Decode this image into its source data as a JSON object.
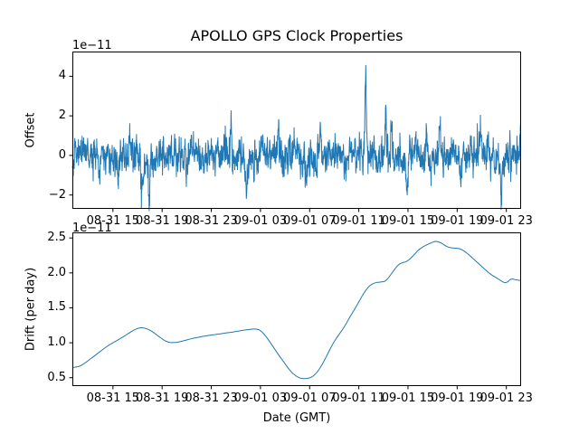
{
  "figure": {
    "title": "APOLLO GPS Clock Properties",
    "background_color": "#ffffff",
    "axes_edge_color": "#000000",
    "text_color": "#000000"
  },
  "chart_data": [
    {
      "type": "line",
      "id": "offset",
      "ylabel": "Offset",
      "scale_label": "1e−11",
      "line_color": "#1f77b4",
      "grid": false,
      "legend": "none",
      "xlim": [
        11.7,
        48.2
      ],
      "ylim": [
        -2.7,
        5.25
      ],
      "x_ticks": {
        "hours": [
          15,
          19,
          23,
          27,
          31,
          35,
          39,
          43,
          47
        ],
        "labels": [
          "08-31 15",
          "08-31 19",
          "08-31 23",
          "09-01 03",
          "09-01 07",
          "09-01 11",
          "09-01 15",
          "09-01 19",
          "09-01 23"
        ]
      },
      "y_ticks": {
        "values": [
          -2,
          0,
          2,
          4
        ],
        "labels": [
          "−2",
          "0",
          "2",
          "4"
        ]
      },
      "series_summary": {
        "description": "dense noisy clock offset (units of 1e-11) fluctuating about 0, typical band ±0.9, largest spike ≈ +4.9 near 09-01 11:30, deepest dip ≈ -2.35 shortly before 09-01 03",
        "mean": 0.0,
        "typical_band": [
          -0.9,
          0.9
        ],
        "max_point": {
          "hour": 35.55,
          "value": 4.9
        },
        "min_point": {
          "hour": 25.85,
          "value": -2.35
        }
      },
      "synthesis": {
        "x_start": 11.7,
        "x_end": 48.2,
        "step": 0.018,
        "seed": 42,
        "ar": 0.45,
        "sigma": 0.42,
        "baseline": [
          [
            11.7,
            0.0
          ],
          [
            12.5,
            0.15
          ],
          [
            13.2,
            0.1
          ],
          [
            14.0,
            0.12
          ],
          [
            14.8,
            -0.1
          ],
          [
            15.5,
            0.1
          ],
          [
            16.2,
            0.12
          ],
          [
            17.0,
            -0.1
          ],
          [
            17.6,
            -0.3
          ],
          [
            18.4,
            -0.25
          ],
          [
            19.0,
            0.05
          ],
          [
            19.8,
            0.15
          ],
          [
            20.6,
            0.0
          ],
          [
            21.4,
            0.15
          ],
          [
            22.2,
            -0.1
          ],
          [
            23.0,
            0.1
          ],
          [
            23.8,
            0.15
          ],
          [
            24.6,
            -0.15
          ],
          [
            25.3,
            0.05
          ],
          [
            25.9,
            -0.4
          ],
          [
            26.6,
            0.1
          ],
          [
            27.3,
            0.25
          ],
          [
            28.0,
            0.1
          ],
          [
            28.7,
            -0.1
          ],
          [
            29.4,
            0.2
          ],
          [
            30.1,
            0.1
          ],
          [
            30.8,
            -0.3
          ],
          [
            31.5,
            -0.1
          ],
          [
            32.2,
            0.1
          ],
          [
            32.9,
            -0.15
          ],
          [
            33.6,
            0.05
          ],
          [
            34.3,
            -0.2
          ],
          [
            35.0,
            0.05
          ],
          [
            35.7,
            0.15
          ],
          [
            36.4,
            -0.1
          ],
          [
            37.1,
            0.2
          ],
          [
            37.8,
            0.1
          ],
          [
            38.5,
            -0.3
          ],
          [
            39.2,
            0.1
          ],
          [
            39.9,
            0.25
          ],
          [
            40.6,
            -0.3
          ],
          [
            41.3,
            0.15
          ],
          [
            42.0,
            -0.1
          ],
          [
            42.7,
            0.25
          ],
          [
            43.4,
            -0.2
          ],
          [
            44.1,
            0.05
          ],
          [
            44.8,
            0.2
          ],
          [
            45.5,
            0.3
          ],
          [
            46.2,
            -0.2
          ],
          [
            46.8,
            -0.3
          ],
          [
            47.4,
            0.15
          ],
          [
            48.2,
            0.3
          ]
        ],
        "events": [
          [
            35.55,
            4.6,
            0.05
          ],
          [
            37.2,
            1.5,
            0.05
          ],
          [
            37.65,
            1.9,
            0.05
          ],
          [
            40.5,
            1.55,
            0.05
          ],
          [
            41.6,
            1.25,
            0.05
          ],
          [
            28.45,
            1.3,
            0.05
          ],
          [
            31.9,
            1.2,
            0.05
          ],
          [
            24.6,
            1.3,
            0.05
          ],
          [
            44.9,
            1.2,
            0.05
          ],
          [
            13.9,
            -0.9,
            0.06
          ],
          [
            15.4,
            -1.2,
            0.05
          ],
          [
            17.35,
            -1.3,
            0.07
          ],
          [
            17.95,
            -1.6,
            0.06
          ],
          [
            21.0,
            -1.05,
            0.06
          ],
          [
            25.85,
            -1.8,
            0.08
          ],
          [
            30.7,
            -1.1,
            0.07
          ],
          [
            33.95,
            -1.15,
            0.06
          ],
          [
            38.9,
            -1.4,
            0.06
          ],
          [
            43.3,
            -1.15,
            0.06
          ],
          [
            46.6,
            -1.3,
            0.07
          ]
        ]
      }
    },
    {
      "type": "line",
      "id": "drift",
      "ylabel": "Drift (per day)",
      "xlabel": "Date (GMT)",
      "scale_label": "1e−11",
      "line_color": "#1f77b4",
      "grid": false,
      "legend": "none",
      "xlim": [
        11.7,
        48.2
      ],
      "ylim": [
        0.38,
        2.58
      ],
      "x_ticks": {
        "hours": [
          15,
          19,
          23,
          27,
          31,
          35,
          39,
          43,
          47
        ],
        "labels": [
          "08-31 15",
          "08-31 19",
          "08-31 23",
          "09-01 03",
          "09-01 07",
          "09-01 11",
          "09-01 15",
          "09-01 19",
          "09-01 23"
        ]
      },
      "y_ticks": {
        "values": [
          0.5,
          1.0,
          1.5,
          2.0,
          2.5
        ],
        "labels": [
          "0.5",
          "1.0",
          "1.5",
          "2.0",
          "2.5"
        ]
      },
      "points": [
        [
          11.7,
          0.645
        ],
        [
          12.3,
          0.66
        ],
        [
          12.8,
          0.72
        ],
        [
          13.4,
          0.8
        ],
        [
          14.0,
          0.88
        ],
        [
          14.6,
          0.96
        ],
        [
          15.2,
          1.02
        ],
        [
          15.8,
          1.08
        ],
        [
          16.4,
          1.15
        ],
        [
          16.9,
          1.2
        ],
        [
          17.3,
          1.22
        ],
        [
          17.8,
          1.2
        ],
        [
          18.3,
          1.15
        ],
        [
          18.8,
          1.08
        ],
        [
          19.3,
          1.02
        ],
        [
          19.7,
          1.0
        ],
        [
          20.2,
          1.005
        ],
        [
          20.8,
          1.03
        ],
        [
          21.4,
          1.06
        ],
        [
          22.0,
          1.08
        ],
        [
          22.6,
          1.1
        ],
        [
          23.2,
          1.115
        ],
        [
          23.8,
          1.13
        ],
        [
          24.4,
          1.145
        ],
        [
          25.0,
          1.16
        ],
        [
          25.6,
          1.18
        ],
        [
          26.1,
          1.19
        ],
        [
          26.6,
          1.2
        ],
        [
          27.0,
          1.18
        ],
        [
          27.5,
          1.08
        ],
        [
          28.0,
          0.95
        ],
        [
          28.5,
          0.82
        ],
        [
          29.0,
          0.7
        ],
        [
          29.5,
          0.58
        ],
        [
          30.0,
          0.51
        ],
        [
          30.4,
          0.485
        ],
        [
          30.9,
          0.49
        ],
        [
          31.3,
          0.52
        ],
        [
          31.8,
          0.62
        ],
        [
          32.3,
          0.78
        ],
        [
          32.8,
          0.96
        ],
        [
          33.3,
          1.1
        ],
        [
          33.8,
          1.22
        ],
        [
          34.3,
          1.38
        ],
        [
          34.8,
          1.52
        ],
        [
          35.2,
          1.65
        ],
        [
          35.6,
          1.76
        ],
        [
          35.9,
          1.82
        ],
        [
          36.3,
          1.86
        ],
        [
          36.8,
          1.87
        ],
        [
          37.2,
          1.88
        ],
        [
          37.7,
          2.0
        ],
        [
          38.2,
          2.12
        ],
        [
          38.6,
          2.15
        ],
        [
          38.9,
          2.16
        ],
        [
          39.4,
          2.24
        ],
        [
          39.9,
          2.34
        ],
        [
          40.5,
          2.4
        ],
        [
          41.0,
          2.44
        ],
        [
          41.3,
          2.455
        ],
        [
          41.7,
          2.43
        ],
        [
          42.2,
          2.37
        ],
        [
          42.7,
          2.355
        ],
        [
          43.2,
          2.35
        ],
        [
          43.7,
          2.3
        ],
        [
          44.2,
          2.22
        ],
        [
          44.7,
          2.14
        ],
        [
          45.2,
          2.06
        ],
        [
          45.7,
          1.98
        ],
        [
          46.2,
          1.93
        ],
        [
          46.7,
          1.87
        ],
        [
          47.0,
          1.855
        ],
        [
          47.4,
          1.92
        ],
        [
          47.75,
          1.9
        ],
        [
          48.2,
          1.89
        ]
      ]
    }
  ]
}
